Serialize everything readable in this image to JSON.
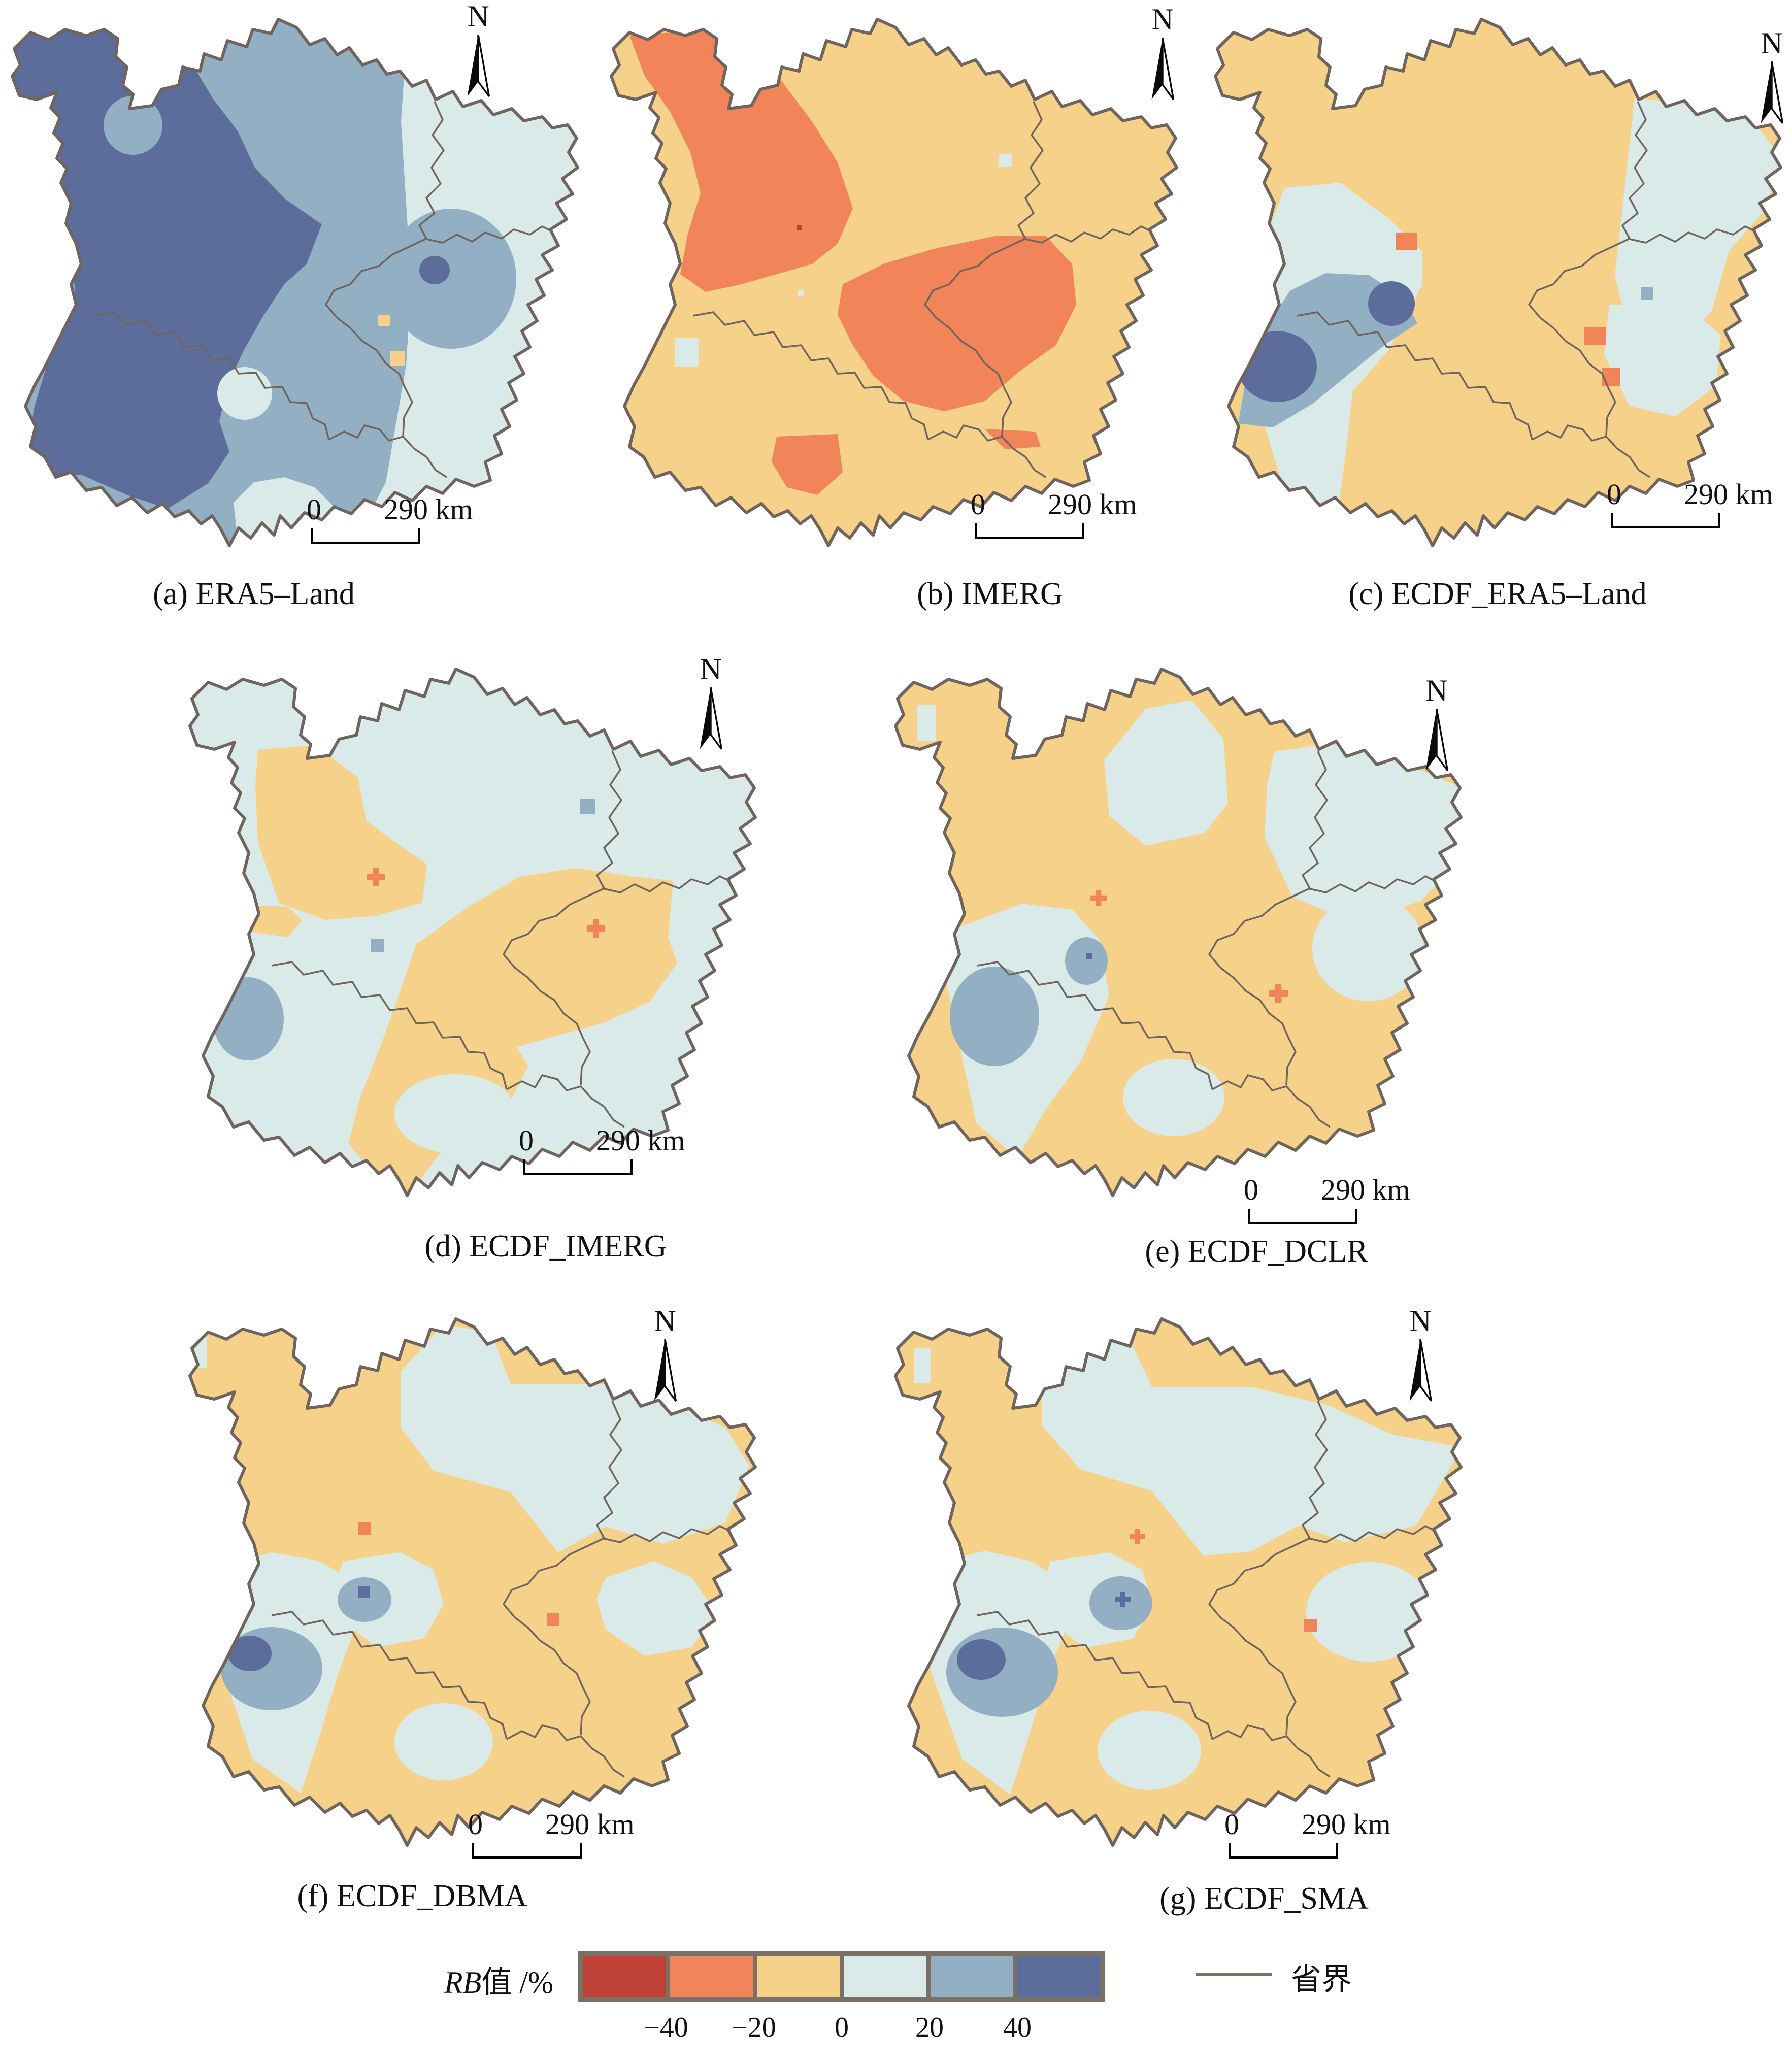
{
  "compass": {
    "label": "N"
  },
  "scalebar": {
    "zero": "0",
    "dist": "290 km"
  },
  "panels": {
    "a": {
      "caption": "(a) ERA5–Land"
    },
    "b": {
      "caption": "(b) IMERG"
    },
    "c": {
      "caption": "(c) ECDF_ERA5–Land"
    },
    "d": {
      "caption": "(d) ECDF_IMERG"
    },
    "e": {
      "caption": "(e) ECDF_DCLR"
    },
    "f": {
      "caption": "(f) ECDF_DBMA"
    },
    "g": {
      "caption": "(g) ECDF_SMA"
    }
  },
  "legend": {
    "title_italic": "RB",
    "title_rest": "值 /%",
    "ticks": [
      "−40",
      "−20",
      "0",
      "20",
      "40"
    ],
    "colors": [
      "#bf4034",
      "#f28459",
      "#f5d189",
      "#d9eae8",
      "#92afc3",
      "#5c6d9b"
    ],
    "boundary_label": "省界",
    "boundary_color": "#7b7065",
    "outline_color": "#6f655e"
  }
}
